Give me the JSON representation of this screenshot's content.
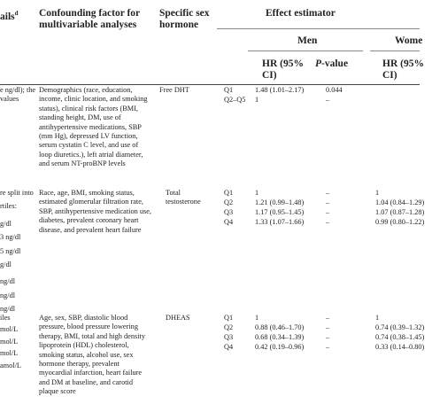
{
  "header": {
    "details_fragment": "ails",
    "details_sup": "d",
    "confounding": "Confounding factor for multivariable analyses",
    "hormone": "Specific sex hormone",
    "effect": "Effect estimator",
    "men": "Men",
    "women_fragment": "Wome",
    "hr_men": "HR (95% CI)",
    "pvalue_p": "P",
    "pvalue_rest": "-value",
    "hr_women": "HR (95% CI)"
  },
  "rows": [
    {
      "details": [
        "e ng/dl); the",
        "values"
      ],
      "confounding": "Demographics (race, education, income, clinic location, and smoking status), clinical risk factors (BMI, standing height, DM, use of antihypertensive medications, SBP (mm Hg), depressed LV function, serum cystatin C level, and use of loop diuretics.), left atrial diameter, and serum NT-proBNP levels",
      "hormone": "Free DHT",
      "quantiles": [
        {
          "q": "Q1",
          "men_hr": "1.48 (1.01–2.17)",
          "men_p": "0.044",
          "women_hr": ""
        },
        {
          "q": "Q2–Q5",
          "men_hr": "1",
          "men_p": "–",
          "women_hr": ""
        }
      ]
    },
    {
      "details": [
        "re split into",
        "rtiles:",
        "g/dl",
        "3 ng/dl",
        "5 ng/dl",
        "g/dl",
        "ng/dl",
        "ng/dl",
        "ng/dl"
      ],
      "confounding": "Race, age, BMI, smoking status, estimated glomerular filtration rate, SBP, antihypertensive medication use, diabetes, prevalent coronary heart disease, and prevalent heart failure",
      "hormone": "Total testosterone",
      "quantiles": [
        {
          "q": "Q1",
          "men_hr": "1",
          "men_p": "–",
          "women_hr": "1"
        },
        {
          "q": "Q2",
          "men_hr": "1.21 (0.99–1.48)",
          "men_p": "–",
          "women_hr": "1.04 (0.84–1.29)"
        },
        {
          "q": "Q3",
          "men_hr": "1.17 (0.95–1.45)",
          "men_p": "–",
          "women_hr": "1.07 (0.87–1.28)"
        },
        {
          "q": "Q4",
          "men_hr": "1.33 (1.07–1.66)",
          "men_p": "–",
          "women_hr": "0.99 (0.80–1.22)"
        }
      ]
    },
    {
      "details": [
        "iles",
        "mol/L",
        "mol/L",
        "mol/L",
        "amol/L"
      ],
      "confounding": "Age, sex, SBP, diastolic blood pressure, blood pressure lowering therapy, BMI, total and high density lipoprotein (HDL) cholesterol, smoking status, alcohol use, sex hormone therapy, prevalent myocardial infarction, heart failure and DM at baseline, and carotid plaque score",
      "hormone": "DHEAS",
      "quantiles": [
        {
          "q": "Q1",
          "men_hr": "1",
          "men_p": "–",
          "women_hr": "1"
        },
        {
          "q": "Q2",
          "men_hr": "0.88 (0.46–1.70)",
          "men_p": "–",
          "women_hr": "0.74 (0.39–1.32)"
        },
        {
          "q": "Q3",
          "men_hr": "0.68 (0.34–1.39)",
          "men_p": "–",
          "women_hr": "0.74 (0.38–1.45)"
        },
        {
          "q": "Q4",
          "men_hr": "0.42 (0.19–0.96)",
          "men_p": "–",
          "women_hr": "0.33 (0.14–0.80)"
        }
      ]
    }
  ]
}
